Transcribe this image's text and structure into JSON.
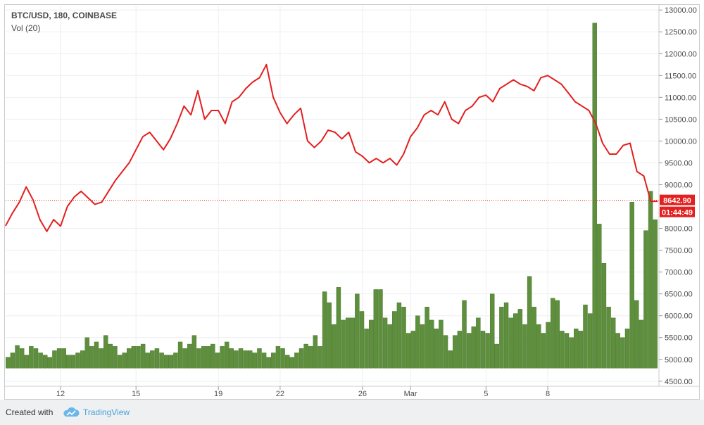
{
  "header": {
    "title": "BTC/USD, 180, COINBASE",
    "volume_label": "Vol (20)"
  },
  "footer": {
    "created_with": "Created with",
    "brand": "TradingView"
  },
  "current_price": {
    "label": "8642.90",
    "countdown": "01:44:49",
    "value": 8642.9
  },
  "colors": {
    "price_line": "#e31f1f",
    "volume_bars": "#5e8f3d",
    "current_price_tag": "#e31f1f"
  },
  "chart_data": {
    "type": "line",
    "title": "BTC/USD, 180, COINBASE",
    "xlabel": "",
    "ylabel": "",
    "ylim": [
      4400,
      13100
    ],
    "grid": true,
    "legend": "none",
    "y_ticks": [
      "13000.00",
      "12500.00",
      "12000.00",
      "11500.00",
      "11000.00",
      "10500.00",
      "10000.00",
      "9500.00",
      "9000.00",
      "8000.00",
      "7500.00",
      "7000.00",
      "6500.00",
      "6000.00",
      "5500.00",
      "5000.00",
      "4500.00"
    ],
    "x_ticks": [
      {
        "label": "12",
        "x": 8.0
      },
      {
        "label": "15",
        "x": 19.0
      },
      {
        "label": "19",
        "x": 31.0
      },
      {
        "label": "22",
        "x": 40.0
      },
      {
        "label": "26",
        "x": 52.0
      },
      {
        "label": "Mar",
        "x": 59.0
      },
      {
        "label": "5",
        "x": 70.0
      },
      {
        "label": "8",
        "x": 79.0
      }
    ],
    "series": [
      {
        "kind": "line",
        "values": [
          8060,
          8350,
          8600,
          8950,
          8650,
          8200,
          7930,
          8200,
          8050,
          8500,
          8720,
          8850,
          8700,
          8550,
          8600,
          8850,
          9100,
          9300,
          9500,
          9800,
          10100,
          10200,
          10000,
          9800,
          10050,
          10400,
          10800,
          10600,
          11150,
          10500,
          10700,
          10700,
          10400,
          10900,
          11000,
          11200,
          11350,
          11450,
          11750,
          11000,
          10650,
          10400,
          10600,
          10750,
          10000,
          9850,
          10000,
          10250,
          10200,
          10050,
          10200,
          9750,
          9650,
          9500,
          9600,
          9500,
          9600,
          9450,
          9700,
          10100,
          10300,
          10600,
          10700,
          10600,
          10900,
          10500,
          10400,
          10700,
          10800,
          11000,
          11050,
          10900,
          11200,
          11300,
          11400,
          11300,
          11250,
          11150,
          11450,
          11500,
          11400,
          11300,
          11100,
          10900,
          10800,
          10700,
          10400,
          9950,
          9700,
          9700,
          9900,
          9950,
          9300,
          9200,
          8620,
          8620
        ]
      },
      {
        "kind": "bar",
        "name": "Volume",
        "values": [
          5050,
          5150,
          5320,
          5250,
          5100,
          5300,
          5250,
          5150,
          5100,
          5050,
          5200,
          5250,
          5250,
          5100,
          5100,
          5150,
          5200,
          5500,
          5300,
          5400,
          5250,
          5550,
          5350,
          5300,
          5100,
          5150,
          5250,
          5300,
          5300,
          5350,
          5150,
          5200,
          5250,
          5150,
          5100,
          5100,
          5150,
          5400,
          5250,
          5350,
          5550,
          5250,
          5300,
          5300,
          5350,
          5150,
          5300,
          5400,
          5250,
          5200,
          5250,
          5200,
          5200,
          5150,
          5250,
          5150,
          5050,
          5150,
          5300,
          5250,
          5100,
          5050,
          5150,
          5250,
          5350,
          5300,
          5550,
          5300,
          6550,
          6300,
          5800,
          6650,
          5900,
          5950,
          5950,
          6500,
          6100,
          5700,
          5900,
          6600,
          6600,
          5950,
          5800,
          6100,
          6300,
          6200,
          5600,
          5650,
          6000,
          5800,
          6200,
          5900,
          5700,
          5900,
          5550,
          5200,
          5550,
          5650,
          6350,
          5600,
          5750,
          5950,
          5650,
          5600,
          6500,
          5350,
          6200,
          6300,
          5950,
          6050,
          6150,
          5800,
          6900,
          6200,
          5800,
          5600,
          5850,
          6400,
          6350,
          5650,
          5600,
          5500,
          5700,
          5650,
          6250,
          6050,
          12700,
          8100,
          7200,
          6200,
          5950,
          5600,
          5500,
          5700,
          8600,
          6350,
          5900,
          7950,
          8850,
          8200
        ]
      }
    ]
  }
}
